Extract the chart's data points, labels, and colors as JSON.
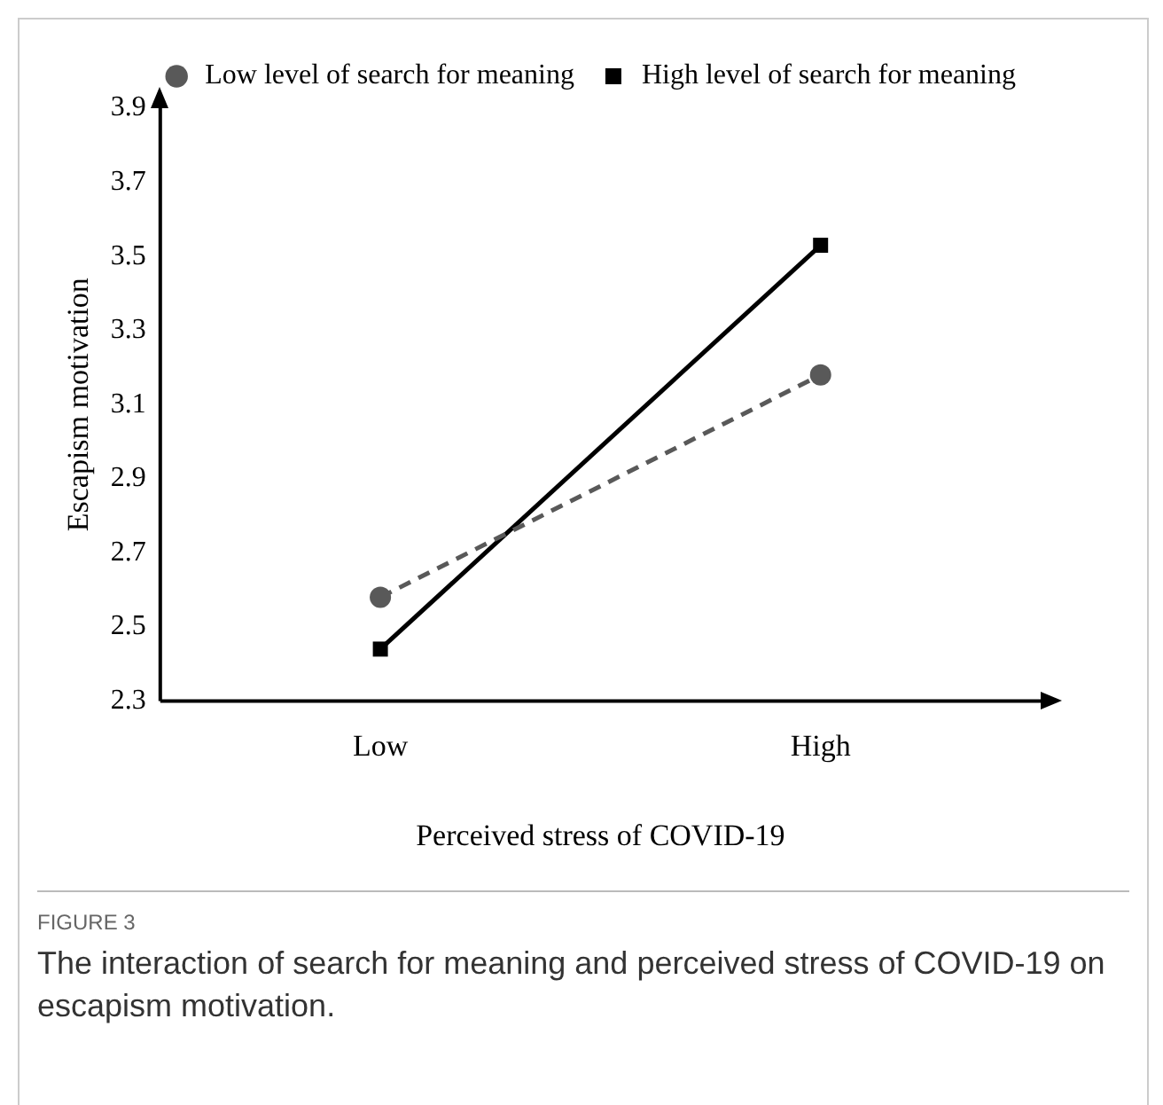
{
  "chart_data": {
    "type": "line",
    "xlabel": "Perceived stress of COVID-19",
    "ylabel": "Escapism motivation",
    "categories": [
      "Low",
      "High"
    ],
    "series": [
      {
        "name": "Low level of search for meaning",
        "color": "#595959",
        "values": [
          2.58,
          3.18
        ],
        "marker": "circle",
        "line_style": "dashed"
      },
      {
        "name": "High level of search for meaning",
        "color": "#000000",
        "values": [
          2.44,
          3.53
        ],
        "marker": "square",
        "line_style": "solid"
      }
    ],
    "ylim": [
      2.3,
      3.9
    ],
    "yticks": [
      2.3,
      2.5,
      2.7,
      2.9,
      3.1,
      3.3,
      3.5,
      3.7,
      3.9
    ],
    "grid": false,
    "legend": "top right",
    "annotations": [
      "FIGURE 3",
      "The interaction of search for meaning and perceived stress of COVID-19 on escapism motivation."
    ]
  }
}
